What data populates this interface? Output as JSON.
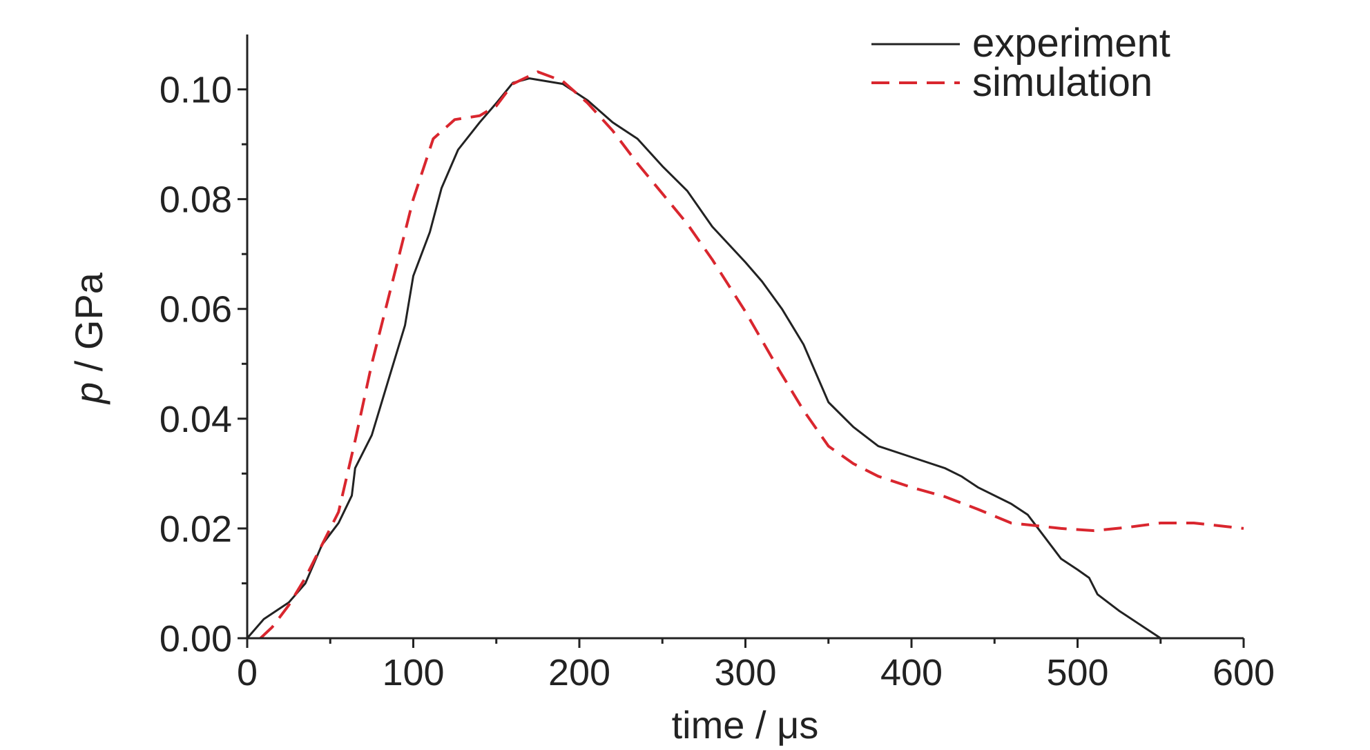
{
  "chart_data": {
    "type": "line",
    "xlabel": "time / μs",
    "ylabel_var": "p",
    "ylabel_unit": " / GPa",
    "xlim": [
      0,
      600
    ],
    "ylim": [
      0,
      0.11
    ],
    "xticks": [
      0,
      100,
      200,
      300,
      400,
      500,
      600
    ],
    "xtick_labels": [
      "0",
      "100",
      "200",
      "300",
      "400",
      "500",
      "600"
    ],
    "yticks": [
      0,
      0.02,
      0.04,
      0.06,
      0.08,
      0.1
    ],
    "ytick_labels": [
      "0.00",
      "0.02",
      "0.04",
      "0.06",
      "0.08",
      "0.10"
    ],
    "grid": false,
    "legend_position": "top-right",
    "series": [
      {
        "name": "experiment",
        "color": "#222222",
        "style": "solid",
        "points": [
          [
            0,
            0
          ],
          [
            10,
            0.0035
          ],
          [
            25,
            0.0065
          ],
          [
            35,
            0.01
          ],
          [
            45,
            0.017
          ],
          [
            55,
            0.021
          ],
          [
            63,
            0.026
          ],
          [
            65,
            0.031
          ],
          [
            75,
            0.037
          ],
          [
            85,
            0.047
          ],
          [
            95,
            0.057
          ],
          [
            100,
            0.066
          ],
          [
            110,
            0.074
          ],
          [
            117,
            0.082
          ],
          [
            127,
            0.089
          ],
          [
            140,
            0.094
          ],
          [
            150,
            0.0975
          ],
          [
            160,
            0.1012
          ],
          [
            170,
            0.102
          ],
          [
            190,
            0.101
          ],
          [
            205,
            0.098
          ],
          [
            220,
            0.094
          ],
          [
            235,
            0.091
          ],
          [
            250,
            0.086
          ],
          [
            265,
            0.0815
          ],
          [
            280,
            0.075
          ],
          [
            300,
            0.0685
          ],
          [
            310,
            0.065
          ],
          [
            322,
            0.06
          ],
          [
            335,
            0.0535
          ],
          [
            350,
            0.043
          ],
          [
            365,
            0.0385
          ],
          [
            380,
            0.035
          ],
          [
            400,
            0.033
          ],
          [
            420,
            0.031
          ],
          [
            430,
            0.0295
          ],
          [
            440,
            0.0275
          ],
          [
            460,
            0.0245
          ],
          [
            470,
            0.0225
          ],
          [
            480,
            0.0185
          ],
          [
            490,
            0.0145
          ],
          [
            500,
            0.0125
          ],
          [
            507,
            0.011
          ],
          [
            512,
            0.008
          ],
          [
            525,
            0.005
          ],
          [
            540,
            0.002
          ],
          [
            550,
            0.0
          ]
        ]
      },
      {
        "name": "simulation",
        "color": "#d9262e",
        "style": "dashed",
        "points": [
          [
            8,
            0
          ],
          [
            15,
            0.002
          ],
          [
            25,
            0.006
          ],
          [
            35,
            0.011
          ],
          [
            45,
            0.017
          ],
          [
            55,
            0.023
          ],
          [
            65,
            0.036
          ],
          [
            75,
            0.05
          ],
          [
            90,
            0.068
          ],
          [
            100,
            0.08
          ],
          [
            112,
            0.091
          ],
          [
            125,
            0.0945
          ],
          [
            140,
            0.0952
          ],
          [
            150,
            0.097
          ],
          [
            160,
            0.101
          ],
          [
            175,
            0.1032
          ],
          [
            190,
            0.1015
          ],
          [
            205,
            0.0975
          ],
          [
            220,
            0.0925
          ],
          [
            235,
            0.0865
          ],
          [
            250,
            0.081
          ],
          [
            265,
            0.0755
          ],
          [
            280,
            0.069
          ],
          [
            300,
            0.0595
          ],
          [
            320,
            0.049
          ],
          [
            335,
            0.0415
          ],
          [
            350,
            0.035
          ],
          [
            365,
            0.0318
          ],
          [
            380,
            0.0295
          ],
          [
            400,
            0.0275
          ],
          [
            420,
            0.0258
          ],
          [
            440,
            0.0235
          ],
          [
            460,
            0.021
          ],
          [
            475,
            0.0205
          ],
          [
            490,
            0.02
          ],
          [
            510,
            0.0196
          ],
          [
            530,
            0.0202
          ],
          [
            550,
            0.021
          ],
          [
            570,
            0.021
          ],
          [
            600,
            0.02
          ]
        ]
      }
    ]
  }
}
